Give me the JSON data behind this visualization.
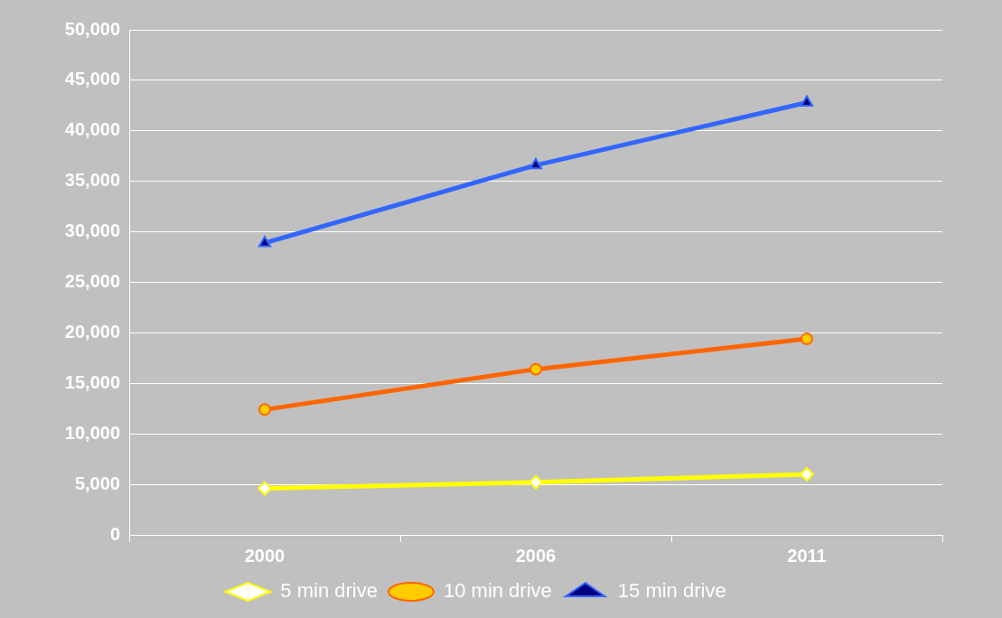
{
  "chart_data": {
    "type": "line",
    "categories": [
      "2000",
      "2006",
      "2011"
    ],
    "series": [
      {
        "name": "5 min drive",
        "color": "#ffff00",
        "marker": "diamond",
        "values": [
          4600,
          5200,
          6000
        ]
      },
      {
        "name": "10 min drive",
        "color": "#ff6600",
        "marker": "circle",
        "values": [
          12400,
          16400,
          19400
        ]
      },
      {
        "name": "15 min drive",
        "color": "#3366ff",
        "marker": "triangle",
        "values": [
          28900,
          36600,
          42800
        ]
      }
    ],
    "ylim": [
      0,
      50000
    ],
    "yticks": [
      {
        "value": 0,
        "label": "0"
      },
      {
        "value": 5000,
        "label": "5,000"
      },
      {
        "value": 10000,
        "label": "10,000"
      },
      {
        "value": 15000,
        "label": "15,000"
      },
      {
        "value": 20000,
        "label": "20,000"
      },
      {
        "value": 25000,
        "label": "25,000"
      },
      {
        "value": 30000,
        "label": "30,000"
      },
      {
        "value": 35000,
        "label": "35,000"
      },
      {
        "value": 40000,
        "label": "40,000"
      },
      {
        "value": 45000,
        "label": "45,000"
      },
      {
        "value": 50000,
        "label": "50,000"
      }
    ],
    "grid": "y",
    "legend": "bottom"
  }
}
